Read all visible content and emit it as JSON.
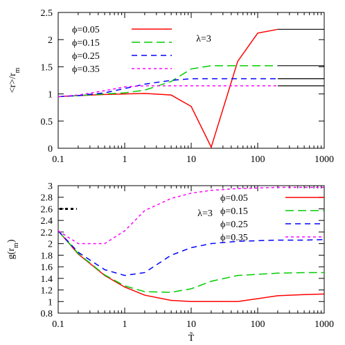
{
  "chart_data": [
    {
      "type": "line",
      "panel": "top",
      "ylabel": "<r>/r_m",
      "ylabel_parts": {
        "main": "<r>/r",
        "sub": "m"
      },
      "xlabel": "",
      "xscale": "log",
      "xlim": [
        0.1,
        1000
      ],
      "ylim": [
        0,
        2.5
      ],
      "xticks": [
        0.1,
        1,
        10,
        100,
        1000
      ],
      "xtick_labels": [
        "0.1",
        "1",
        "10",
        "100",
        "1000"
      ],
      "yticks": [
        0,
        0.5,
        1,
        1.5,
        2,
        2.5
      ],
      "ytick_labels": [
        "0",
        "0.5",
        "1",
        "1.5",
        "2",
        "2.5"
      ],
      "annotation": "λ=3",
      "legend_position": "top-left",
      "series": [
        {
          "name": "ϕ=0.05",
          "color": "#ff0000",
          "dash": "solid",
          "x": [
            0.1,
            0.2,
            0.5,
            1,
            2,
            5,
            10,
            20,
            50,
            100,
            200
          ],
          "y": [
            0.95,
            0.97,
            0.99,
            1.0,
            1.01,
            0.98,
            0.77,
            0.02,
            1.6,
            2.12,
            2.19
          ],
          "tail": 2.19
        },
        {
          "name": "ϕ=0.15",
          "color": "#00cc00",
          "dash": "long",
          "x": [
            0.1,
            0.2,
            0.5,
            1,
            2,
            5,
            10,
            20,
            50,
            100,
            200
          ],
          "y": [
            0.95,
            0.97,
            1.0,
            1.02,
            1.07,
            1.23,
            1.46,
            1.52,
            1.52,
            1.52,
            1.52
          ],
          "tail": 1.52
        },
        {
          "name": "ϕ=0.25",
          "color": "#0000ff",
          "dash": "medium",
          "x": [
            0.1,
            0.2,
            0.5,
            1,
            2,
            5,
            10,
            20,
            50,
            100,
            200
          ],
          "y": [
            0.95,
            0.97,
            1.02,
            1.1,
            1.18,
            1.25,
            1.28,
            1.28,
            1.28,
            1.28,
            1.28
          ],
          "tail": 1.28
        },
        {
          "name": "ϕ=0.35",
          "color": "#ff00ff",
          "dash": "short",
          "x": [
            0.1,
            0.2,
            0.5,
            1,
            2,
            5,
            10,
            20,
            50,
            100,
            200
          ],
          "y": [
            0.95,
            0.98,
            1.06,
            1.13,
            1.15,
            1.15,
            1.15,
            1.15,
            1.15,
            1.15,
            1.15
          ],
          "tail": 1.15
        }
      ]
    },
    {
      "type": "line",
      "panel": "bottom",
      "ylabel": "g(r_m)",
      "ylabel_parts": {
        "main": "g(r",
        "sub": "m",
        "end": ")"
      },
      "xlabel": "T̃",
      "xscale": "log",
      "xlim": [
        0.1,
        1000
      ],
      "ylim": [
        0.8,
        3
      ],
      "xticks": [
        0.1,
        1,
        10,
        100,
        1000
      ],
      "xtick_labels": [
        "0.1",
        "1",
        "10",
        "100",
        "1000"
      ],
      "yticks": [
        0.8,
        1,
        1.2,
        1.4,
        1.6,
        1.8,
        2,
        2.2,
        2.4,
        2.6,
        2.8,
        3
      ],
      "ytick_labels": [
        "0.8",
        "1",
        "1.2",
        "1.4",
        "1.6",
        "1.8",
        "2",
        "2.2",
        "2.4",
        "2.6",
        "2.8",
        "3"
      ],
      "annotation": "λ=3",
      "legend_position": "top-right",
      "marker_segment": {
        "x": [
          0.1,
          0.2
        ],
        "y": 2.6
      },
      "series": [
        {
          "name": "ϕ=0.05",
          "color": "#ff0000",
          "dash": "solid",
          "x": [
            0.1,
            0.2,
            0.5,
            1,
            2,
            5,
            10,
            20,
            50,
            100,
            200,
            500,
            1000
          ],
          "y": [
            2.22,
            1.82,
            1.45,
            1.25,
            1.11,
            1.02,
            1.0,
            1.0,
            1.0,
            1.05,
            1.1,
            1.12,
            1.13
          ]
        },
        {
          "name": "ϕ=0.15",
          "color": "#00cc00",
          "dash": "long",
          "x": [
            0.1,
            0.2,
            0.5,
            1,
            2,
            5,
            10,
            20,
            50,
            100,
            200,
            500,
            1000
          ],
          "y": [
            2.22,
            1.83,
            1.46,
            1.27,
            1.17,
            1.16,
            1.22,
            1.35,
            1.45,
            1.47,
            1.49,
            1.5,
            1.5
          ]
        },
        {
          "name": "ϕ=0.25",
          "color": "#0000ff",
          "dash": "medium",
          "x": [
            0.1,
            0.2,
            0.5,
            1,
            2,
            5,
            10,
            20,
            50,
            100,
            200,
            500,
            1000
          ],
          "y": [
            2.22,
            1.85,
            1.55,
            1.45,
            1.5,
            1.8,
            1.93,
            2.0,
            2.04,
            2.05,
            2.06,
            2.06,
            2.07
          ]
        },
        {
          "name": "ϕ=0.35",
          "color": "#ff00ff",
          "dash": "short",
          "x": [
            0.1,
            0.2,
            0.5,
            1,
            2,
            5,
            10,
            20,
            50,
            100,
            200,
            500,
            1000
          ],
          "y": [
            2.22,
            2.0,
            2.0,
            2.22,
            2.57,
            2.78,
            2.87,
            2.92,
            2.95,
            2.96,
            2.97,
            2.97,
            2.97
          ]
        }
      ]
    }
  ]
}
